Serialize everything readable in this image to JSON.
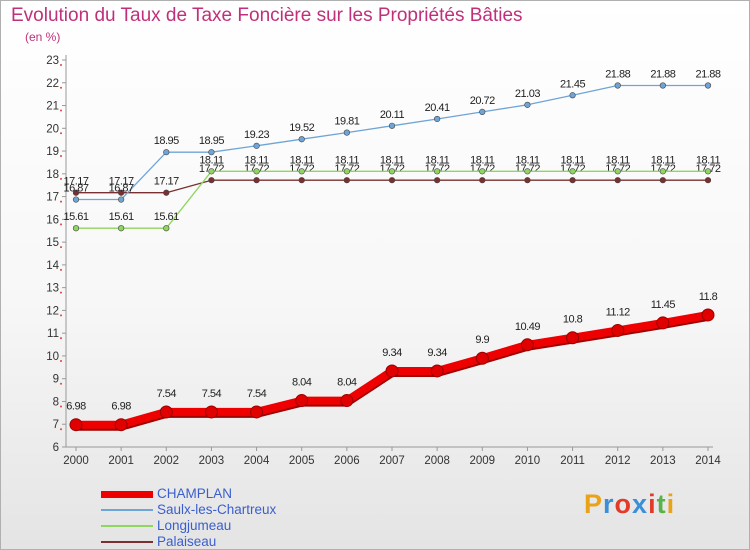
{
  "header": {
    "title": "Evolution du Taux de Taxe Foncière sur les Propriétés Bâties",
    "unit": "(en %)"
  },
  "brand": {
    "text": "Proxiti",
    "colors": [
      "#e8a31a",
      "#3b8fd8",
      "#e23b2a",
      "#3b8fd8",
      "#e23b2a",
      "#5ab34a",
      "#e8a31a"
    ]
  },
  "chart_data": {
    "type": "line",
    "x": [
      2000,
      2001,
      2002,
      2003,
      2004,
      2005,
      2006,
      2007,
      2008,
      2009,
      2010,
      2011,
      2012,
      2013,
      2014
    ],
    "ylim": [
      6,
      23
    ],
    "yticks": [
      6,
      7,
      8,
      9,
      10,
      11,
      12,
      13,
      14,
      15,
      16,
      17,
      18,
      19,
      20,
      21,
      22,
      23
    ],
    "grid": false,
    "legend_position": "bottom-left",
    "series": [
      {
        "name": "CHAMPLAN",
        "color": "#ee0000",
        "labels": [
          "6.98",
          "6.98",
          "7.54",
          "7.54",
          "7.54",
          "8.04",
          "8.04",
          "9.34",
          "9.34",
          "9.9",
          "10.49",
          "10.8",
          "11.12",
          "11.45",
          "11.8"
        ],
        "values": [
          6.98,
          6.98,
          7.54,
          7.54,
          7.54,
          8.04,
          8.04,
          9.34,
          9.34,
          9.9,
          10.49,
          10.8,
          11.12,
          11.45,
          11.8
        ]
      },
      {
        "name": "Saulx-les-Chartreux",
        "color": "#6fa5d6",
        "labels": [
          "16.87",
          "16.87",
          "18.95",
          "18.95",
          "19.23",
          "19.52",
          "19.81",
          "20.11",
          "20.41",
          "20.72",
          "21.03",
          "21.45",
          "21.88",
          "21.88",
          "21.88"
        ],
        "values": [
          16.87,
          16.87,
          18.95,
          18.95,
          19.23,
          19.52,
          19.81,
          20.11,
          20.41,
          20.72,
          21.03,
          21.45,
          21.88,
          21.88,
          21.88
        ]
      },
      {
        "name": "Longjumeau",
        "color": "#8ed65e",
        "labels": [
          "15.61",
          "15.61",
          "15.61",
          "18.11",
          "18.11",
          "18.11",
          "18.11",
          "18.11",
          "18.11",
          "18.11",
          "18.11",
          "18.11",
          "18.11",
          "18.11",
          "18.11"
        ],
        "values": [
          15.61,
          15.61,
          15.61,
          18.11,
          18.11,
          18.11,
          18.11,
          18.11,
          18.11,
          18.11,
          18.11,
          18.11,
          18.11,
          18.11,
          18.11
        ]
      },
      {
        "name": "Palaiseau",
        "color": "#7a3030",
        "labels": [
          "17.17",
          "17.17",
          "17.17",
          "17.72",
          "17.72",
          "17.72",
          "17.72",
          "17.72",
          "17.72",
          "17.72",
          "17.72",
          "17.72",
          "17.72",
          "17.72",
          "17.72"
        ],
        "values": [
          17.17,
          17.17,
          17.17,
          17.72,
          17.72,
          17.72,
          17.72,
          17.72,
          17.72,
          17.72,
          17.72,
          17.72,
          17.72,
          17.72,
          17.72
        ]
      }
    ]
  }
}
